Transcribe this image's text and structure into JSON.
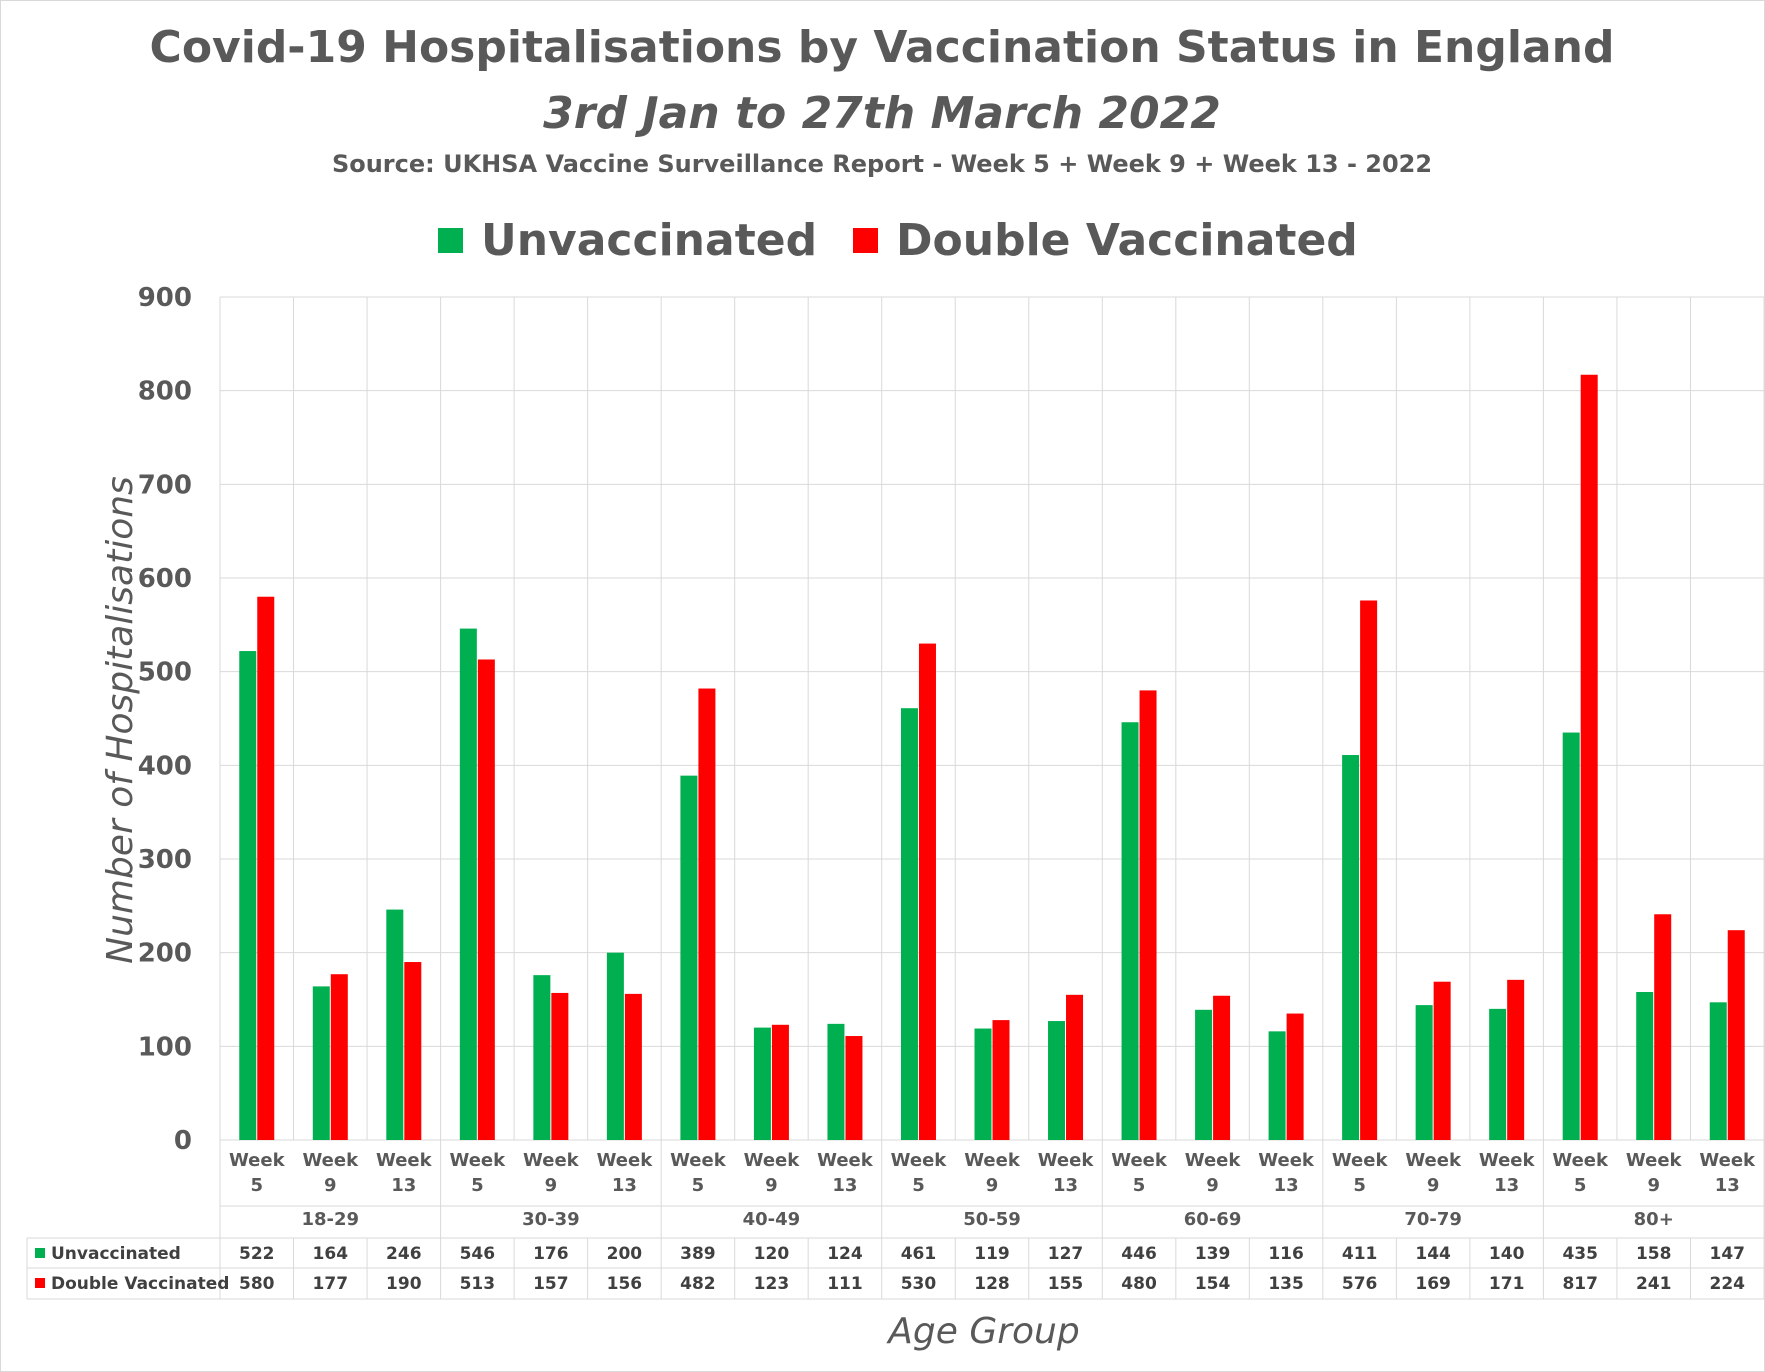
{
  "chart_data": {
    "type": "bar",
    "title": "Covid-19 Hospitalisations by Vaccination Status in England",
    "subtitle": "3rd Jan to 27th March 2022",
    "source": "Source: UKHSA Vaccine Surveillance Report - Week 5 + Week 9 + Week 13 - 2022",
    "ylabel": "Number of Hospitalisations",
    "xlabel": "Age Group",
    "ylim": [
      0,
      900
    ],
    "yticks": [
      0,
      100,
      200,
      300,
      400,
      500,
      600,
      700,
      800,
      900
    ],
    "grid": true,
    "legend_position": "top-center",
    "groups": [
      "18-29",
      "30-39",
      "40-49",
      "50-59",
      "60-69",
      "70-79",
      "80+"
    ],
    "weeks": [
      {
        "line1": "Week",
        "line2": "5"
      },
      {
        "line1": "Week",
        "line2": "9"
      },
      {
        "line1": "Week",
        "line2": "13"
      }
    ],
    "series": [
      {
        "name": "Unvaccinated",
        "color": "#00b050",
        "values": [
          522,
          164,
          246,
          546,
          176,
          200,
          389,
          120,
          124,
          461,
          119,
          127,
          446,
          139,
          116,
          411,
          144,
          140,
          435,
          158,
          147
        ]
      },
      {
        "name": "Double Vaccinated",
        "color": "#ff0000",
        "values": [
          580,
          177,
          190,
          513,
          157,
          156,
          482,
          123,
          111,
          530,
          128,
          155,
          480,
          154,
          135,
          576,
          169,
          171,
          817,
          241,
          224
        ]
      }
    ]
  }
}
